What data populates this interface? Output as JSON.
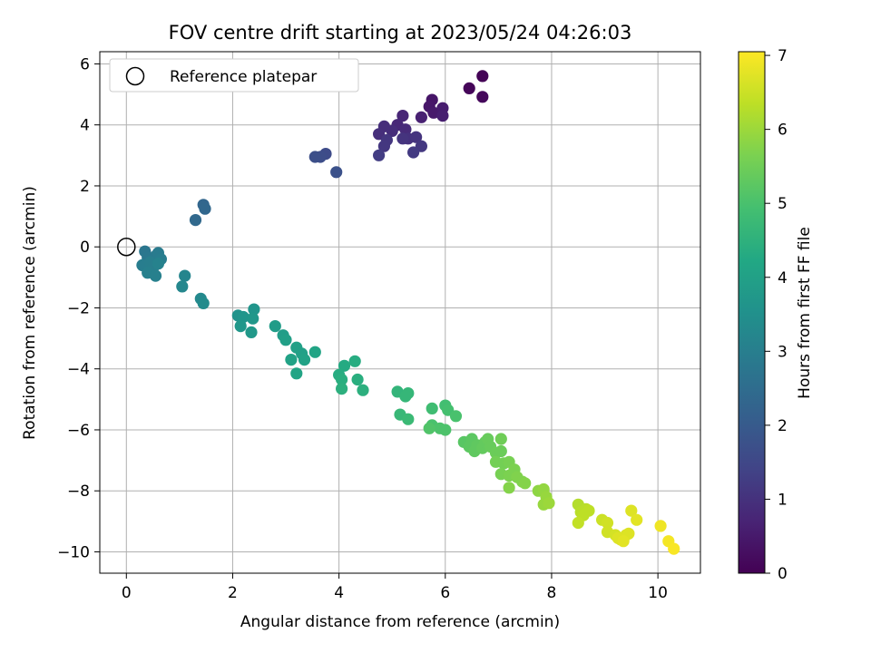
{
  "chart_data": {
    "type": "scatter",
    "title": "FOV centre drift starting at 2023/05/24 04:26:03",
    "xlabel": "Angular distance from reference (arcmin)",
    "ylabel": "Rotation from reference (arcmin)",
    "xlim": [
      -0.5,
      10.8
    ],
    "ylim": [
      -10.7,
      6.4
    ],
    "xticks": [
      0,
      2,
      4,
      6,
      8,
      10
    ],
    "yticks": [
      -10,
      -8,
      -6,
      -4,
      -2,
      0,
      2,
      4,
      6
    ],
    "xtick_labels": [
      "0",
      "2",
      "4",
      "6",
      "8",
      "10"
    ],
    "ytick_labels": [
      "−10",
      "−8",
      "−6",
      "−4",
      "−2",
      "0",
      "2",
      "4",
      "6"
    ],
    "grid": true,
    "legend": {
      "placement": "top-left",
      "entries": [
        "Reference platepar"
      ]
    },
    "reference_point": {
      "x": 0,
      "y": 0
    },
    "colorbar": {
      "label": "Hours from first FF file",
      "range": [
        0,
        7.05
      ],
      "ticks": [
        0,
        1,
        2,
        3,
        4,
        5,
        6,
        7
      ],
      "tick_labels": [
        "0",
        "1",
        "2",
        "3",
        "4",
        "5",
        "6",
        "7"
      ],
      "colormap": "viridis"
    },
    "series": [
      {
        "points": [
          [
            6.7,
            5.6,
            0.05
          ],
          [
            6.45,
            5.2,
            0.1
          ],
          [
            6.7,
            4.92,
            0.15
          ],
          [
            5.75,
            4.82,
            0.4
          ],
          [
            5.7,
            4.6,
            0.45
          ],
          [
            5.78,
            4.4,
            0.5
          ],
          [
            5.95,
            4.55,
            0.55
          ],
          [
            5.95,
            4.3,
            0.6
          ],
          [
            5.55,
            4.25,
            0.65
          ],
          [
            5.2,
            4.3,
            0.75
          ],
          [
            5.1,
            4.0,
            0.8
          ],
          [
            5.25,
            3.85,
            0.85
          ],
          [
            5.0,
            3.8,
            0.9
          ],
          [
            4.85,
            3.95,
            0.92
          ],
          [
            4.75,
            3.7,
            0.95
          ],
          [
            5.3,
            3.55,
            1.0
          ],
          [
            5.45,
            3.6,
            1.05
          ],
          [
            5.2,
            3.55,
            1.05
          ],
          [
            4.9,
            3.5,
            1.1
          ],
          [
            4.85,
            3.3,
            1.12
          ],
          [
            5.55,
            3.3,
            1.15
          ],
          [
            5.4,
            3.1,
            1.2
          ],
          [
            4.75,
            3.0,
            1.25
          ],
          [
            3.75,
            3.05,
            1.6
          ],
          [
            3.65,
            2.95,
            1.65
          ],
          [
            3.55,
            2.95,
            1.7
          ],
          [
            3.95,
            2.45,
            1.75
          ],
          [
            1.45,
            1.38,
            2.3
          ],
          [
            1.48,
            1.25,
            2.35
          ],
          [
            1.3,
            0.88,
            2.4
          ],
          [
            0.35,
            -0.15,
            2.75
          ],
          [
            0.4,
            -0.35,
            2.8
          ],
          [
            0.55,
            -0.3,
            2.85
          ],
          [
            0.6,
            -0.2,
            2.9
          ],
          [
            0.65,
            -0.4,
            2.95
          ],
          [
            0.3,
            -0.6,
            2.95
          ],
          [
            0.45,
            -0.5,
            3.0
          ],
          [
            0.5,
            -0.7,
            3.0
          ],
          [
            0.4,
            -0.85,
            3.05
          ],
          [
            0.55,
            -0.95,
            3.05
          ],
          [
            0.6,
            -0.55,
            3.1
          ],
          [
            1.1,
            -0.95,
            3.2
          ],
          [
            1.05,
            -1.3,
            3.25
          ],
          [
            1.4,
            -1.7,
            3.3
          ],
          [
            1.45,
            -1.85,
            3.35
          ],
          [
            2.1,
            -2.25,
            3.6
          ],
          [
            2.2,
            -2.3,
            3.65
          ],
          [
            2.4,
            -2.05,
            3.65
          ],
          [
            2.15,
            -2.6,
            3.7
          ],
          [
            2.38,
            -2.35,
            3.7
          ],
          [
            2.35,
            -2.8,
            3.75
          ],
          [
            2.8,
            -2.6,
            3.85
          ],
          [
            2.95,
            -2.9,
            3.9
          ],
          [
            3.0,
            -3.05,
            3.95
          ],
          [
            3.2,
            -3.3,
            4.0
          ],
          [
            3.3,
            -3.5,
            4.0
          ],
          [
            3.1,
            -3.7,
            4.05
          ],
          [
            3.35,
            -3.7,
            4.05
          ],
          [
            3.55,
            -3.45,
            4.1
          ],
          [
            3.2,
            -4.15,
            4.1
          ],
          [
            4.1,
            -3.9,
            4.3
          ],
          [
            4.3,
            -3.75,
            4.35
          ],
          [
            4.0,
            -4.2,
            4.35
          ],
          [
            4.05,
            -4.35,
            4.4
          ],
          [
            4.35,
            -4.35,
            4.4
          ],
          [
            4.05,
            -4.65,
            4.45
          ],
          [
            4.45,
            -4.7,
            4.45
          ],
          [
            5.1,
            -4.75,
            4.6
          ],
          [
            5.3,
            -4.8,
            4.65
          ],
          [
            5.25,
            -4.9,
            4.65
          ],
          [
            5.15,
            -5.5,
            4.7
          ],
          [
            5.3,
            -5.65,
            4.75
          ],
          [
            5.75,
            -5.3,
            4.85
          ],
          [
            6.0,
            -5.2,
            4.9
          ],
          [
            6.05,
            -5.35,
            4.95
          ],
          [
            6.2,
            -5.55,
            5.0
          ],
          [
            5.75,
            -5.85,
            5.0
          ],
          [
            5.9,
            -5.95,
            5.05
          ],
          [
            6.0,
            -6.0,
            5.05
          ],
          [
            5.7,
            -5.95,
            5.1
          ],
          [
            6.35,
            -6.4,
            5.2
          ],
          [
            6.5,
            -6.3,
            5.25
          ],
          [
            6.45,
            -6.55,
            5.25
          ],
          [
            6.6,
            -6.5,
            5.3
          ],
          [
            6.55,
            -6.7,
            5.3
          ],
          [
            6.7,
            -6.6,
            5.35
          ],
          [
            6.75,
            -6.4,
            5.35
          ],
          [
            6.8,
            -6.3,
            5.4
          ],
          [
            6.85,
            -6.55,
            5.4
          ],
          [
            6.95,
            -6.75,
            5.45
          ],
          [
            7.05,
            -6.7,
            5.45
          ],
          [
            7.05,
            -6.3,
            5.5
          ],
          [
            6.95,
            -7.05,
            5.55
          ],
          [
            7.1,
            -7.1,
            5.55
          ],
          [
            7.2,
            -7.05,
            5.6
          ],
          [
            7.05,
            -7.45,
            5.6
          ],
          [
            7.2,
            -7.5,
            5.65
          ],
          [
            7.3,
            -7.3,
            5.65
          ],
          [
            7.35,
            -7.55,
            5.7
          ],
          [
            7.45,
            -7.7,
            5.7
          ],
          [
            7.5,
            -7.75,
            5.75
          ],
          [
            7.2,
            -7.9,
            5.75
          ],
          [
            7.75,
            -8.0,
            5.85
          ],
          [
            7.85,
            -7.95,
            5.9
          ],
          [
            7.9,
            -8.2,
            5.95
          ],
          [
            7.85,
            -8.45,
            5.95
          ],
          [
            7.95,
            -8.4,
            6.0
          ],
          [
            8.5,
            -8.45,
            6.25
          ],
          [
            8.55,
            -8.7,
            6.3
          ],
          [
            8.65,
            -8.6,
            6.3
          ],
          [
            8.7,
            -8.65,
            6.35
          ],
          [
            8.6,
            -8.8,
            6.35
          ],
          [
            8.5,
            -9.05,
            6.4
          ],
          [
            8.95,
            -8.95,
            6.5
          ],
          [
            9.05,
            -9.05,
            6.55
          ],
          [
            9.05,
            -9.35,
            6.55
          ],
          [
            9.2,
            -9.45,
            6.6
          ],
          [
            9.3,
            -9.6,
            6.65
          ],
          [
            9.4,
            -9.45,
            6.65
          ],
          [
            9.45,
            -9.4,
            6.7
          ],
          [
            9.25,
            -9.55,
            6.7
          ],
          [
            9.35,
            -9.65,
            6.75
          ],
          [
            9.5,
            -8.65,
            6.7
          ],
          [
            9.6,
            -8.95,
            6.75
          ],
          [
            10.05,
            -9.15,
            6.9
          ],
          [
            10.2,
            -9.65,
            6.95
          ],
          [
            10.3,
            -9.9,
            7.0
          ]
        ]
      }
    ]
  }
}
